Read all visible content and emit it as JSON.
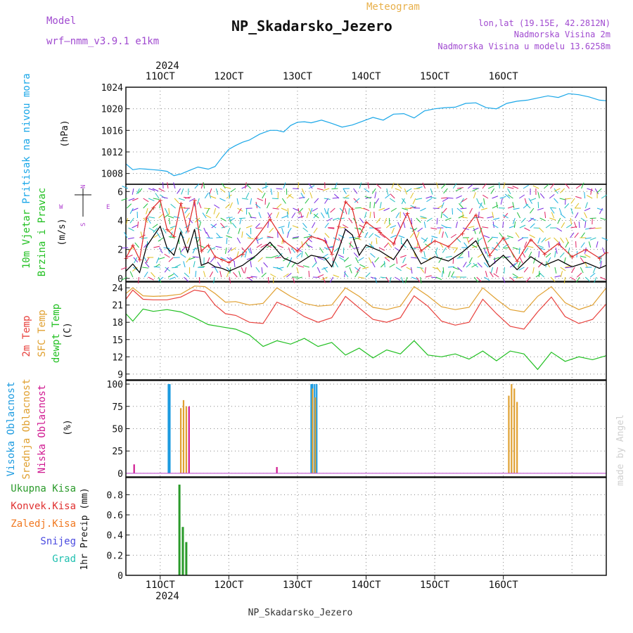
{
  "header": {
    "model_label": "Model",
    "model_name": "wrf–nmm_v3.9.1 e1km",
    "product": "Meteogram",
    "station": "NP_Skadarsko_Jezero",
    "lonlat": "lon,lat (19.15E, 42.2812N)",
    "elev": "Nadmorska Visina 2m",
    "elev_model": "Nadmorska Visina u modelu 13.6258m",
    "credit": "made by Angel",
    "footer": "NP_Skadarsko_Jezero",
    "year": "2024"
  },
  "colors": {
    "pressure": "#1aa7e8",
    "t2m": "#e8403c",
    "sfc": "#e0a030",
    "dew": "#22c022",
    "high_cloud": "#1c9be0",
    "mid_cloud": "#e0a030",
    "low_cloud": "#d01890",
    "total_precip": "#2a9a2a",
    "conv_precip": "#e03030",
    "frz_precip": "#f07820",
    "snow": "#4a4ae0",
    "hail": "#20c0b0",
    "wind_speed": "#000000",
    "gust": "#e03030",
    "wind_dir_label": "#b040d0"
  },
  "chart_data": [
    {
      "type": "line",
      "panel": "pressure",
      "ylabel_lines": [
        "Pritisak na nivou mora"
      ],
      "unit": "(hPa)",
      "ylim": [
        1006,
        1024
      ],
      "yticks": [
        1008,
        1012,
        1016,
        1020,
        1024
      ],
      "x_day_start": 10,
      "x_day_end": 16,
      "x_start": 9.5,
      "x_end": 16.5,
      "x_ticks": [
        "11OCT",
        "12OCT",
        "13OCT",
        "14OCT",
        "15OCT",
        "16OCT"
      ],
      "grid": true,
      "series": [
        {
          "color_key": "pressure",
          "x": [
            9.5,
            9.6,
            9.7,
            9.8,
            9.9,
            10.0,
            10.1,
            10.2,
            10.3,
            10.45,
            10.55,
            10.7,
            10.8,
            10.9,
            11.0,
            11.1,
            11.2,
            11.3,
            11.45,
            11.6,
            11.7,
            11.8,
            11.9,
            12.0,
            12.1,
            12.2,
            12.35,
            12.5,
            12.65,
            12.8,
            12.95,
            13.1,
            13.25,
            13.4,
            13.55,
            13.7,
            13.85,
            14.0,
            14.15,
            14.3,
            14.45,
            14.6,
            14.75,
            14.9,
            15.05,
            15.2,
            15.35,
            15.5,
            15.65,
            15.8,
            15.95,
            16.1,
            16.25,
            16.4,
            16.5
          ],
          "y": [
            1009.8,
            1008.7,
            1008.9,
            1008.8,
            1008.7,
            1008.6,
            1008.4,
            1007.6,
            1007.9,
            1008.7,
            1009.2,
            1008.8,
            1009.3,
            1011.0,
            1012.5,
            1013.2,
            1013.8,
            1014.2,
            1015.3,
            1016.0,
            1016.0,
            1015.7,
            1016.9,
            1017.5,
            1017.6,
            1017.4,
            1017.9,
            1017.3,
            1016.6,
            1017.0,
            1017.7,
            1018.4,
            1017.9,
            1019.0,
            1019.1,
            1018.3,
            1019.6,
            1020.0,
            1020.2,
            1020.3,
            1021.0,
            1021.1,
            1020.2,
            1020.0,
            1021.0,
            1021.4,
            1021.6,
            1022.0,
            1022.4,
            1022.1,
            1022.8,
            1022.6,
            1022.2,
            1021.6,
            1021.5
          ]
        }
      ]
    },
    {
      "type": "line",
      "panel": "wind",
      "ylabel_lines": [
        "10m Vjetar",
        "Brzina i Pravac"
      ],
      "unit": "(m/s)",
      "compass": [
        "N",
        "E",
        "S",
        "W"
      ],
      "ylim": [
        -0.2,
        6.5
      ],
      "yticks": [
        0,
        2,
        4,
        6
      ],
      "grid": true,
      "series": [
        {
          "color_key": "wind_speed",
          "x": [
            9.5,
            9.6,
            9.7,
            9.8,
            9.9,
            10.0,
            10.1,
            10.2,
            10.3,
            10.4,
            10.5,
            10.6,
            10.7,
            10.8,
            10.9,
            11.0,
            11.2,
            11.4,
            11.6,
            11.8,
            12.0,
            12.2,
            12.4,
            12.5,
            12.6,
            12.7,
            12.8,
            12.9,
            13.0,
            13.2,
            13.4,
            13.6,
            13.8,
            14.0,
            14.2,
            14.4,
            14.6,
            14.8,
            15.0,
            15.2,
            15.4,
            15.6,
            15.8,
            16.0,
            16.2,
            16.4,
            16.5
          ],
          "y": [
            0.5,
            1.0,
            0.4,
            2.2,
            2.9,
            3.6,
            2.1,
            1.6,
            3.2,
            1.8,
            3.4,
            0.9,
            1.1,
            0.8,
            0.7,
            0.5,
            0.9,
            1.6,
            2.5,
            1.4,
            1.0,
            1.6,
            1.4,
            0.8,
            2.0,
            3.4,
            3.0,
            1.6,
            2.3,
            1.9,
            1.3,
            2.7,
            1.0,
            1.5,
            1.2,
            1.8,
            2.6,
            0.8,
            1.6,
            0.6,
            1.5,
            0.9,
            1.3,
            0.8,
            1.1,
            0.7,
            0.9
          ]
        },
        {
          "color_key": "gust",
          "x": [
            9.5,
            9.6,
            9.7,
            9.8,
            9.9,
            10.0,
            10.1,
            10.2,
            10.3,
            10.4,
            10.5,
            10.6,
            10.7,
            10.8,
            10.9,
            11.0,
            11.2,
            11.4,
            11.6,
            11.8,
            12.0,
            12.2,
            12.4,
            12.5,
            12.6,
            12.7,
            12.8,
            12.9,
            13.0,
            13.2,
            13.4,
            13.6,
            13.8,
            14.0,
            14.2,
            14.4,
            14.6,
            14.8,
            15.0,
            15.2,
            15.4,
            15.6,
            15.8,
            16.0,
            16.2,
            16.4,
            16.5
          ],
          "y": [
            1.4,
            2.3,
            1.3,
            4.2,
            4.9,
            5.4,
            3.4,
            2.9,
            5.2,
            3.3,
            5.4,
            1.9,
            2.3,
            1.5,
            1.3,
            1.1,
            1.7,
            2.8,
            4.1,
            2.6,
            1.9,
            2.9,
            2.6,
            1.7,
            3.6,
            5.3,
            4.8,
            2.9,
            3.9,
            3.2,
            2.4,
            4.5,
            1.9,
            2.6,
            2.2,
            3.1,
            4.4,
            1.6,
            2.8,
            1.2,
            2.7,
            1.7,
            2.4,
            1.5,
            2.0,
            1.4,
            1.8
          ]
        }
      ]
    },
    {
      "type": "line",
      "panel": "temperature",
      "ylabel_lines": [
        "2m Temp",
        "SFC Temp",
        "dewpt Temp"
      ],
      "unit": "(C)",
      "ylim": [
        8,
        25
      ],
      "yticks": [
        9,
        12,
        15,
        18,
        21,
        24
      ],
      "grid": true,
      "series": [
        {
          "color_key": "t2m",
          "x": [
            9.5,
            9.6,
            9.75,
            9.9,
            10.1,
            10.3,
            10.5,
            10.65,
            10.8,
            10.95,
            11.1,
            11.3,
            11.5,
            11.7,
            11.9,
            12.1,
            12.3,
            12.5,
            12.7,
            12.9,
            13.1,
            13.3,
            13.5,
            13.7,
            13.9,
            14.1,
            14.3,
            14.5,
            14.7,
            14.9,
            15.1,
            15.3,
            15.5,
            15.7,
            15.9,
            16.1,
            16.3,
            16.5
          ],
          "y": [
            22.0,
            23.6,
            22.0,
            21.9,
            21.9,
            22.4,
            23.6,
            23.3,
            21.0,
            19.5,
            19.2,
            18.0,
            17.8,
            21.5,
            20.5,
            19.0,
            18.0,
            18.8,
            22.5,
            20.5,
            18.5,
            18.0,
            18.8,
            22.6,
            20.8,
            18.2,
            17.5,
            18.0,
            22.0,
            19.5,
            17.3,
            16.8,
            19.8,
            22.4,
            19.0,
            17.8,
            18.5,
            21.2
          ]
        },
        {
          "color_key": "sfc",
          "x": [
            9.5,
            9.6,
            9.75,
            9.9,
            10.1,
            10.3,
            10.5,
            10.65,
            10.8,
            10.95,
            11.1,
            11.3,
            11.5,
            11.7,
            11.9,
            12.1,
            12.3,
            12.5,
            12.7,
            12.9,
            13.1,
            13.3,
            13.5,
            13.7,
            13.9,
            14.1,
            14.3,
            14.5,
            14.7,
            14.9,
            15.1,
            15.3,
            15.5,
            15.7,
            15.9,
            16.1,
            16.3,
            16.5
          ],
          "y": [
            23.0,
            24.0,
            22.6,
            22.5,
            22.6,
            22.9,
            24.3,
            24.2,
            23.0,
            21.5,
            21.6,
            21.0,
            21.3,
            24.0,
            22.5,
            21.3,
            20.8,
            21.0,
            24.0,
            22.5,
            20.6,
            20.2,
            20.8,
            24.2,
            22.6,
            20.7,
            20.2,
            20.6,
            24.0,
            22.0,
            20.2,
            19.8,
            22.5,
            24.2,
            21.4,
            20.2,
            21.0,
            24.0
          ]
        },
        {
          "color_key": "dew",
          "x": [
            9.5,
            9.6,
            9.75,
            9.9,
            10.1,
            10.3,
            10.5,
            10.7,
            10.9,
            11.1,
            11.3,
            11.5,
            11.7,
            11.9,
            12.1,
            12.3,
            12.5,
            12.7,
            12.9,
            13.1,
            13.3,
            13.5,
            13.7,
            13.9,
            14.1,
            14.3,
            14.5,
            14.7,
            14.9,
            15.1,
            15.3,
            15.5,
            15.7,
            15.9,
            16.1,
            16.3,
            16.5
          ],
          "y": [
            19.5,
            18.2,
            20.3,
            19.9,
            20.2,
            19.8,
            18.8,
            17.6,
            17.2,
            16.8,
            15.8,
            13.8,
            14.8,
            14.2,
            15.2,
            13.8,
            14.5,
            12.3,
            13.5,
            11.8,
            13.2,
            12.5,
            14.8,
            12.3,
            12.0,
            12.5,
            11.6,
            13.0,
            11.3,
            13.0,
            12.5,
            9.8,
            12.8,
            11.2,
            12.0,
            11.5,
            12.2
          ]
        }
      ]
    },
    {
      "type": "bar",
      "panel": "clouds",
      "ylabel_lines": [
        "Visoka Oblacnost",
        "Srednja Oblacnost",
        "Niska Oblacnost"
      ],
      "unit": "(%)",
      "ylim": [
        -4,
        104
      ],
      "yticks": [
        0,
        25,
        50,
        75,
        100
      ],
      "grid": true,
      "series": [
        {
          "name": "Visoka Oblacnost",
          "color_key": "high_cloud",
          "x": [
            10.12,
            10.14,
            12.2,
            12.22,
            12.25,
            12.28
          ],
          "values": [
            100,
            100,
            100,
            100,
            100,
            100
          ]
        },
        {
          "name": "Srednja Oblacnost",
          "color_key": "mid_cloud",
          "x": [
            10.3,
            10.34,
            10.38,
            12.22,
            12.26,
            15.08,
            15.12,
            15.16,
            15.2
          ],
          "values": [
            73,
            82,
            75,
            95,
            85,
            87,
            100,
            95,
            80
          ]
        },
        {
          "name": "Niska Oblacnost",
          "color_key": "low_cloud",
          "x": [
            9.62,
            10.42,
            11.7
          ],
          "values": [
            10,
            75,
            7
          ]
        }
      ]
    },
    {
      "type": "bar",
      "panel": "precip",
      "ylabel_lines": [
        "Ukupna Kisa",
        "Konvek.Kisa",
        "Zaledj.Kisa",
        "Snijeg",
        "Grad"
      ],
      "unit": "1hr Precip (mm)",
      "ylim": [
        0,
        0.97
      ],
      "yticks": [
        0,
        0.2,
        0.4,
        0.6,
        0.8
      ],
      "grid": true,
      "series": [
        {
          "name": "Ukupna Kisa",
          "color_key": "total_precip",
          "x": [
            10.28,
            10.33,
            10.38
          ],
          "values": [
            0.9,
            0.48,
            0.33
          ]
        }
      ]
    }
  ]
}
